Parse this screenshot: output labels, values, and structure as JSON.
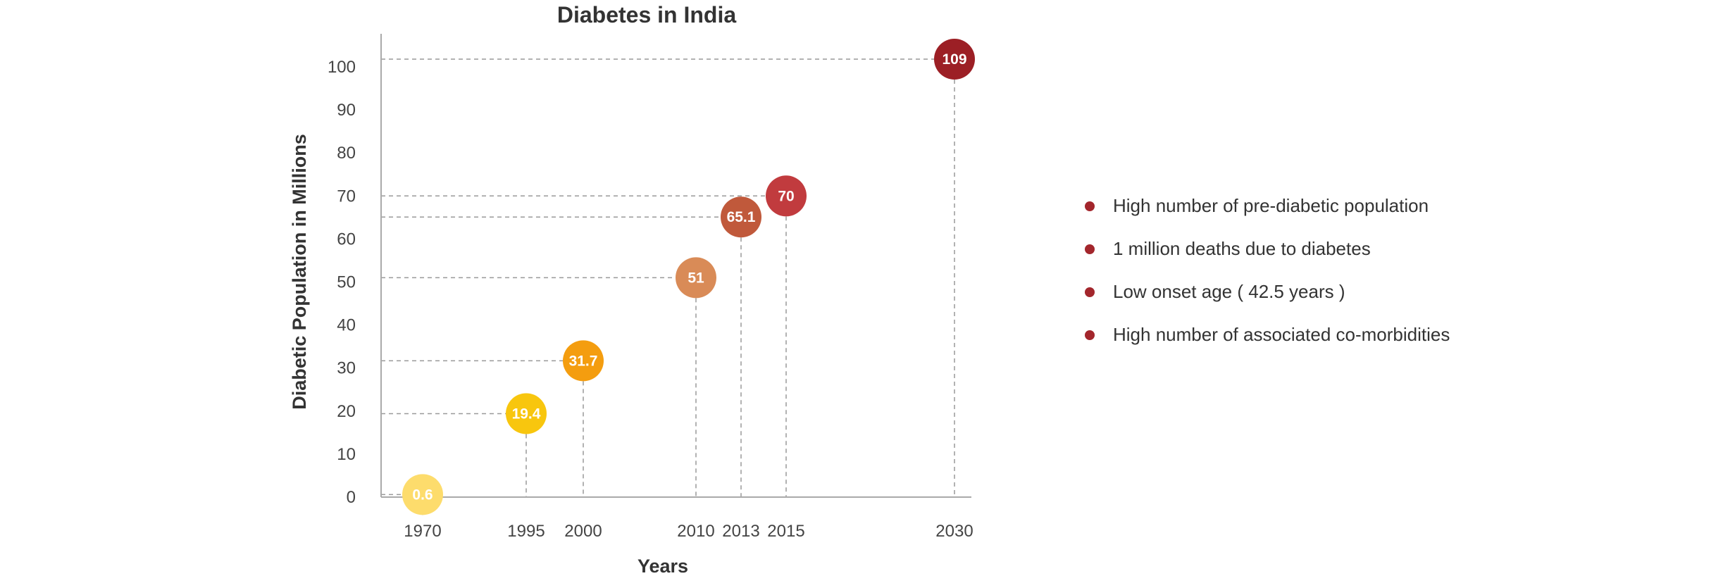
{
  "chart_data": {
    "type": "scatter",
    "title": "Diabetes in India",
    "xlabel": "Years",
    "ylabel": "Diabetic Population in Millions",
    "ylim": [
      0,
      104
    ],
    "yticks": [
      0,
      10,
      20,
      30,
      40,
      50,
      60,
      70,
      80,
      90,
      100
    ],
    "xticks": [
      1970,
      1995,
      2000,
      2010,
      2013,
      2015,
      2030
    ],
    "grid": false,
    "legend": "none",
    "points": [
      {
        "x": 1970,
        "y": 0.6,
        "label": "0.6",
        "color": "#fddc6c"
      },
      {
        "x": 1995,
        "y": 19.4,
        "label": "19.4",
        "color": "#f8c60e"
      },
      {
        "x": 2000,
        "y": 31.7,
        "label": "31.7",
        "color": "#f49d0f"
      },
      {
        "x": 2010,
        "y": 51,
        "label": "51",
        "color": "#d98b57"
      },
      {
        "x": 2013,
        "y": 65.1,
        "label": "65.1",
        "color": "#c0593b"
      },
      {
        "x": 2015,
        "y": 70,
        "label": "70",
        "color": "#c13b3e"
      },
      {
        "x": 2030,
        "y": 109,
        "label": "109",
        "color": "#9c1f25"
      }
    ]
  },
  "notes": [
    {
      "text": "High number of pre-diabetic population"
    },
    {
      "text": "1 million deaths due to diabetes"
    },
    {
      "text": "Low onset age ( 42.5 years )"
    },
    {
      "text": "High number of associated co-morbidities"
    }
  ],
  "colors": {
    "note_bullet": "#a3262c",
    "axis": "#aaaaaa",
    "guide": "#999999"
  }
}
